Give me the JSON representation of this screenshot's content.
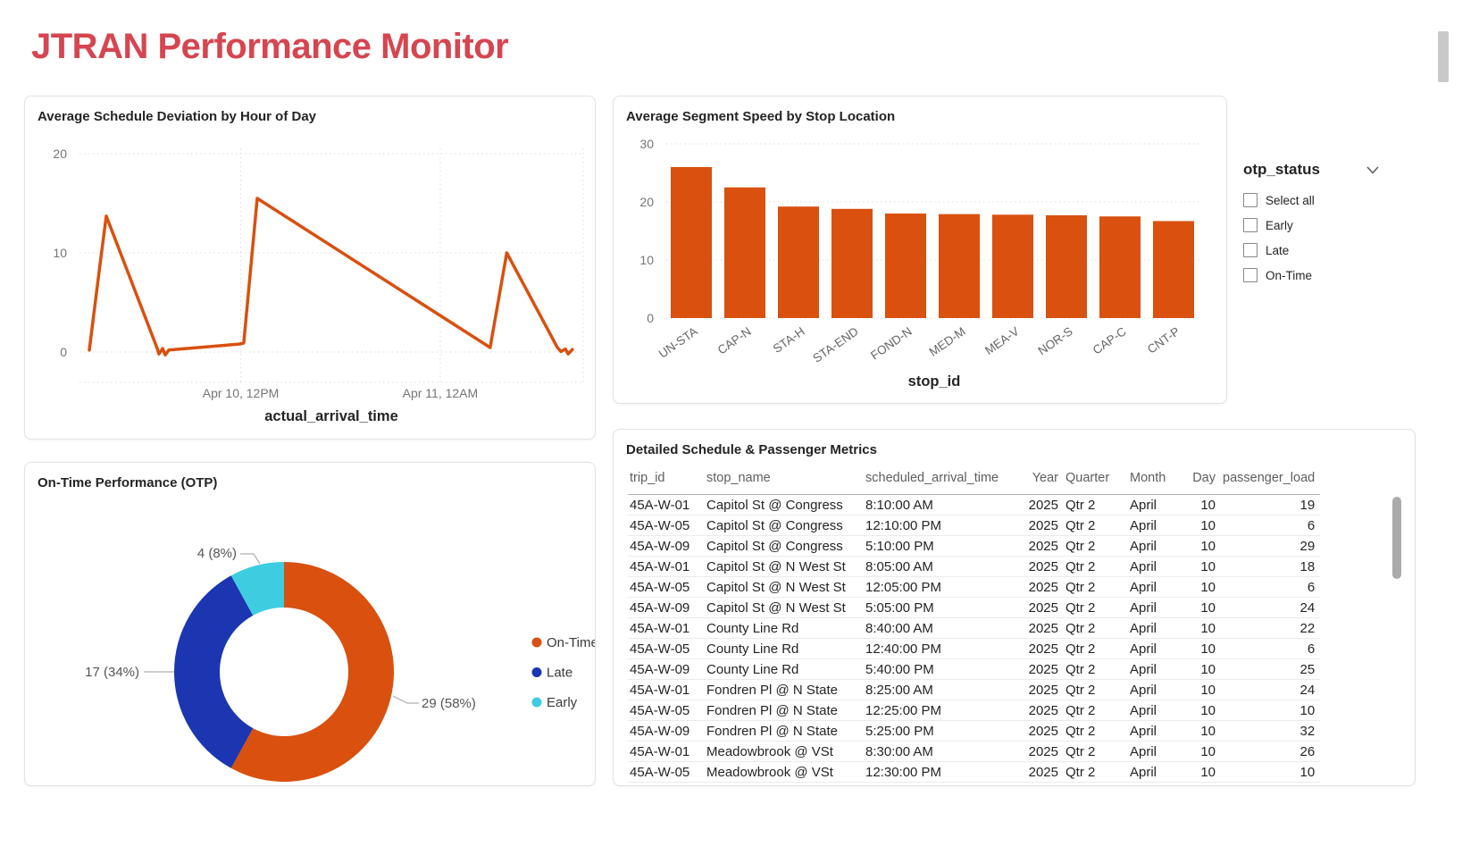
{
  "page": {
    "title": "JTRAN Performance Monitor"
  },
  "slicer": {
    "title": "otp_status",
    "options": [
      "Select all",
      "Early",
      "Late",
      "On-Time"
    ]
  },
  "chart_data": [
    {
      "type": "line",
      "title": "Average Schedule Deviation by Hour of Day",
      "xlabel": "actual_arrival_time",
      "ylabel": "",
      "x_unit": "hours since Apr 10 00:00",
      "x_range": [
        2.3,
        32.6
      ],
      "ylim": [
        -3,
        20
      ],
      "y_gridlines": [
        0,
        10,
        20
      ],
      "x_ticks": [
        {
          "hour": 12,
          "label": "Apr 10, 12PM"
        },
        {
          "hour": 24,
          "label": "Apr 11, 12AM"
        }
      ],
      "line_color": "#D9500F",
      "points": [
        [
          2.89,
          0.2
        ],
        [
          3.54,
          8.9
        ],
        [
          3.91,
          13.7
        ],
        [
          6.97,
          0.4
        ],
        [
          7.08,
          -0.2
        ],
        [
          7.3,
          0.35
        ],
        [
          7.46,
          -0.3
        ],
        [
          7.67,
          0.2
        ],
        [
          11.92,
          0.8
        ],
        [
          12.18,
          0.9
        ],
        [
          12.99,
          15.5
        ],
        [
          27.0,
          0.45
        ],
        [
          28.0,
          10.0
        ],
        [
          31.05,
          0.45
        ],
        [
          31.26,
          0.05
        ],
        [
          31.53,
          0.3
        ],
        [
          31.69,
          -0.2
        ],
        [
          31.95,
          0.25
        ]
      ]
    },
    {
      "type": "bar",
      "title": "Average Segment Speed by Stop Location",
      "xlabel": "stop_id",
      "ylabel": "",
      "ylim": [
        0,
        30
      ],
      "y_gridlines": [
        0,
        10,
        20,
        30
      ],
      "bar_color": "#D9500F",
      "categories": [
        "UN-STA",
        "CAP-N",
        "STA-H",
        "STA-END",
        "FOND-N",
        "MED-M",
        "MEA-V",
        "NOR-S",
        "CAP-C",
        "CNT-P"
      ],
      "values": [
        26,
        22.5,
        19.2,
        18.8,
        18,
        17.9,
        17.8,
        17.7,
        17.5,
        16.7
      ]
    },
    {
      "type": "pie",
      "title": "On-Time Performance (OTP)",
      "legend_position": "right",
      "slices": [
        {
          "label": "On-Time",
          "value": 29,
          "pct": 58,
          "callout": "29 (58%)",
          "color": "#D9500F"
        },
        {
          "label": "Late",
          "value": 17,
          "pct": 34,
          "callout": "17 (34%)",
          "color": "#1B36B0"
        },
        {
          "label": "Early",
          "value": 4,
          "pct": 8,
          "callout": "4 (8%)",
          "color": "#3ECDE0"
        }
      ]
    },
    {
      "type": "table",
      "title": "Detailed Schedule & Passenger Metrics",
      "columns": [
        "trip_id",
        "stop_name",
        "scheduled_arrival_time",
        "Year",
        "Quarter",
        "Month",
        "Day",
        "passenger_load"
      ],
      "rows": [
        [
          "45A-W-01",
          "Capitol St @ Congress",
          "8:10:00 AM",
          "2025",
          "Qtr 2",
          "April",
          "10",
          "19"
        ],
        [
          "45A-W-05",
          "Capitol St @ Congress",
          "12:10:00 PM",
          "2025",
          "Qtr 2",
          "April",
          "10",
          "6"
        ],
        [
          "45A-W-09",
          "Capitol St @ Congress",
          "5:10:00 PM",
          "2025",
          "Qtr 2",
          "April",
          "10",
          "29"
        ],
        [
          "45A-W-01",
          "Capitol St @ N West St",
          "8:05:00 AM",
          "2025",
          "Qtr 2",
          "April",
          "10",
          "18"
        ],
        [
          "45A-W-05",
          "Capitol St @ N West St",
          "12:05:00 PM",
          "2025",
          "Qtr 2",
          "April",
          "10",
          "6"
        ],
        [
          "45A-W-09",
          "Capitol St @ N West St",
          "5:05:00 PM",
          "2025",
          "Qtr 2",
          "April",
          "10",
          "24"
        ],
        [
          "45A-W-01",
          "County Line Rd",
          "8:40:00 AM",
          "2025",
          "Qtr 2",
          "April",
          "10",
          "22"
        ],
        [
          "45A-W-05",
          "County Line Rd",
          "12:40:00 PM",
          "2025",
          "Qtr 2",
          "April",
          "10",
          "6"
        ],
        [
          "45A-W-09",
          "County Line Rd",
          "5:40:00 PM",
          "2025",
          "Qtr 2",
          "April",
          "10",
          "25"
        ],
        [
          "45A-W-01",
          "Fondren Pl @ N State",
          "8:25:00 AM",
          "2025",
          "Qtr 2",
          "April",
          "10",
          "24"
        ],
        [
          "45A-W-05",
          "Fondren Pl @ N State",
          "12:25:00 PM",
          "2025",
          "Qtr 2",
          "April",
          "10",
          "10"
        ],
        [
          "45A-W-09",
          "Fondren Pl @ N State",
          "5:25:00 PM",
          "2025",
          "Qtr 2",
          "April",
          "10",
          "32"
        ],
        [
          "45A-W-01",
          "Meadowbrook @ VSt",
          "8:30:00 AM",
          "2025",
          "Qtr 2",
          "April",
          "10",
          "26"
        ],
        [
          "45A-W-05",
          "Meadowbrook @ VSt",
          "12:30:00 PM",
          "2025",
          "Qtr 2",
          "April",
          "10",
          "10"
        ]
      ]
    }
  ],
  "colors": {
    "accent_orange": "#D9500F",
    "late_blue": "#1B36B0",
    "early_cyan": "#3ECDE0",
    "title_red": "#D64550"
  }
}
